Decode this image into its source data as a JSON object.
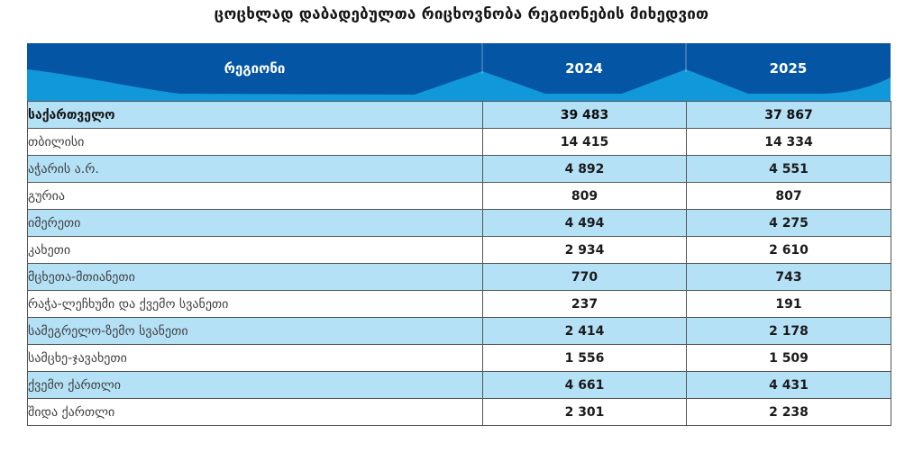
{
  "title": "ცოცხლად დაბადებულთა რიცხოვნობა რეგიონების მიხედვით",
  "header": {
    "region": "რეგიონი",
    "y2024": "2024",
    "y2025": "2025"
  },
  "table": {
    "rows": [
      {
        "region": "საქართველო",
        "y2024": "39 483",
        "y2025": "37 867"
      },
      {
        "region": "თბილისი",
        "y2024": "14 415",
        "y2025": "14 334"
      },
      {
        "region": "აჭარის ა.რ.",
        "y2024": "4 892",
        "y2025": "4 551"
      },
      {
        "region": "გურია",
        "y2024": "809",
        "y2025": "807"
      },
      {
        "region": "იმერეთი",
        "y2024": "4 494",
        "y2025": "4 275"
      },
      {
        "region": "კახეთი",
        "y2024": "2 934",
        "y2025": "2 610"
      },
      {
        "region": "მცხეთა-მთიანეთი",
        "y2024": "770",
        "y2025": "743"
      },
      {
        "region": "რაჭა-ლეჩხუმი და ქვემო სვანეთი",
        "y2024": "237",
        "y2025": "191"
      },
      {
        "region": "სამეგრელო-ზემო სვანეთი",
        "y2024": "2 414",
        "y2025": "2 178"
      },
      {
        "region": "სამცხე-ჯავახეთი",
        "y2024": "1 556",
        "y2025": "1 509"
      },
      {
        "region": "ქვემო ქართლი",
        "y2024": "4 661",
        "y2025": "4 431"
      },
      {
        "region": "შიდა ქართლი",
        "y2024": "2 301",
        "y2025": "2 238"
      }
    ]
  },
  "chart_data": {
    "type": "table",
    "title": "ცოცხლად დაბადებულთა რიცხოვნობა რეგიონების მიხედვით",
    "columns": [
      "რეგიონი",
      "2024",
      "2025"
    ],
    "rows": [
      [
        "საქართველო",
        39483,
        37867
      ],
      [
        "თბილისი",
        14415,
        14334
      ],
      [
        "აჭარის ა.რ.",
        4892,
        4551
      ],
      [
        "გურია",
        809,
        807
      ],
      [
        "იმერეთი",
        4494,
        4275
      ],
      [
        "კახეთი",
        2934,
        2610
      ],
      [
        "მცხეთა-მთიანეთი",
        770,
        743
      ],
      [
        "რაჭა-ლეჩხუმი და ქვემო სვანეთი",
        237,
        191
      ],
      [
        "სამეგრელო-ზემო სვანეთი",
        2414,
        2178
      ],
      [
        "სამცხე-ჯავახეთი",
        1556,
        1509
      ],
      [
        "ქვემო ქართლი",
        4661,
        4431
      ],
      [
        "შიდა ქართლი",
        2301,
        2238
      ]
    ],
    "notes": "total row: საქართველო (country total), striped rows alternate light blue"
  },
  "colors": {
    "header_background": "#0455a4",
    "header_wave": "#1098db",
    "header_text": "#ffffff",
    "stripe_row": "#b5e1f7",
    "border": "#545658",
    "label_text": "#3f3f3f",
    "number_text": "#1b1b1b",
    "title_text": "#151515"
  }
}
